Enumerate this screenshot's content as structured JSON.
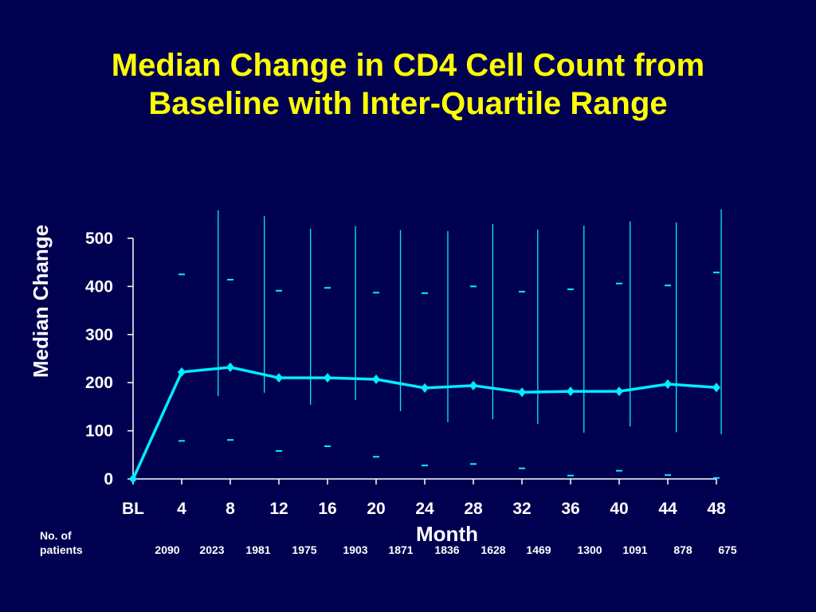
{
  "title_lines": [
    "Median Change in CD4 Cell Count from",
    "Baseline with Inter-Quartile Range"
  ],
  "colors": {
    "background": "#000050",
    "title": "#ffff00",
    "series": "#00eeff",
    "axis": "#ffffff"
  },
  "chart_data": {
    "type": "line",
    "title": "Median Change in CD4 Cell Count from Baseline with Inter-Quartile Range",
    "xlabel": "Month",
    "ylabel": "Median Change",
    "ylim": [
      0,
      500
    ],
    "yticks": [
      0,
      100,
      200,
      300,
      400,
      500
    ],
    "grid": false,
    "categories": [
      "BL",
      "4",
      "8",
      "12",
      "16",
      "20",
      "24",
      "28",
      "32",
      "36",
      "40",
      "44",
      "48"
    ],
    "x": [
      0,
      4,
      8,
      12,
      16,
      20,
      24,
      28,
      32,
      36,
      40,
      44,
      48
    ],
    "series": [
      {
        "values": [
          0,
          222,
          232,
          210,
          210,
          207,
          189,
          194,
          180,
          182,
          182,
          197,
          190
        ]
      }
    ],
    "q3": [
      null,
      425,
      414,
      391,
      397,
      387,
      386,
      400,
      389,
      394,
      406,
      402,
      429
    ],
    "q1": [
      null,
      79,
      81,
      58,
      68,
      46,
      28,
      31,
      22,
      7,
      17,
      8,
      2
    ],
    "range_lines": [
      {
        "x": 7.0,
        "high": 558,
        "low": 172
      },
      {
        "x": 10.8,
        "high": 546,
        "low": 179
      },
      {
        "x": 14.6,
        "high": 520,
        "low": 154
      },
      {
        "x": 18.3,
        "high": 525,
        "low": 164
      },
      {
        "x": 22.0,
        "high": 517,
        "low": 141
      },
      {
        "x": 25.9,
        "high": 515,
        "low": 118
      },
      {
        "x": 29.6,
        "high": 530,
        "low": 124
      },
      {
        "x": 33.3,
        "high": 518,
        "low": 114
      },
      {
        "x": 37.1,
        "high": 526,
        "low": 96
      },
      {
        "x": 40.9,
        "high": 535,
        "low": 109
      },
      {
        "x": 44.7,
        "high": 533,
        "low": 97
      },
      {
        "x": 48.4,
        "high": 560,
        "low": 93
      }
    ],
    "patients_label": [
      "No. of",
      "patients"
    ],
    "patients": [
      "2090",
      "2023",
      "1981",
      "1975",
      "1903",
      "1871",
      "1836",
      "1628",
      "1469",
      "1300",
      "1091",
      "878",
      "675"
    ]
  }
}
